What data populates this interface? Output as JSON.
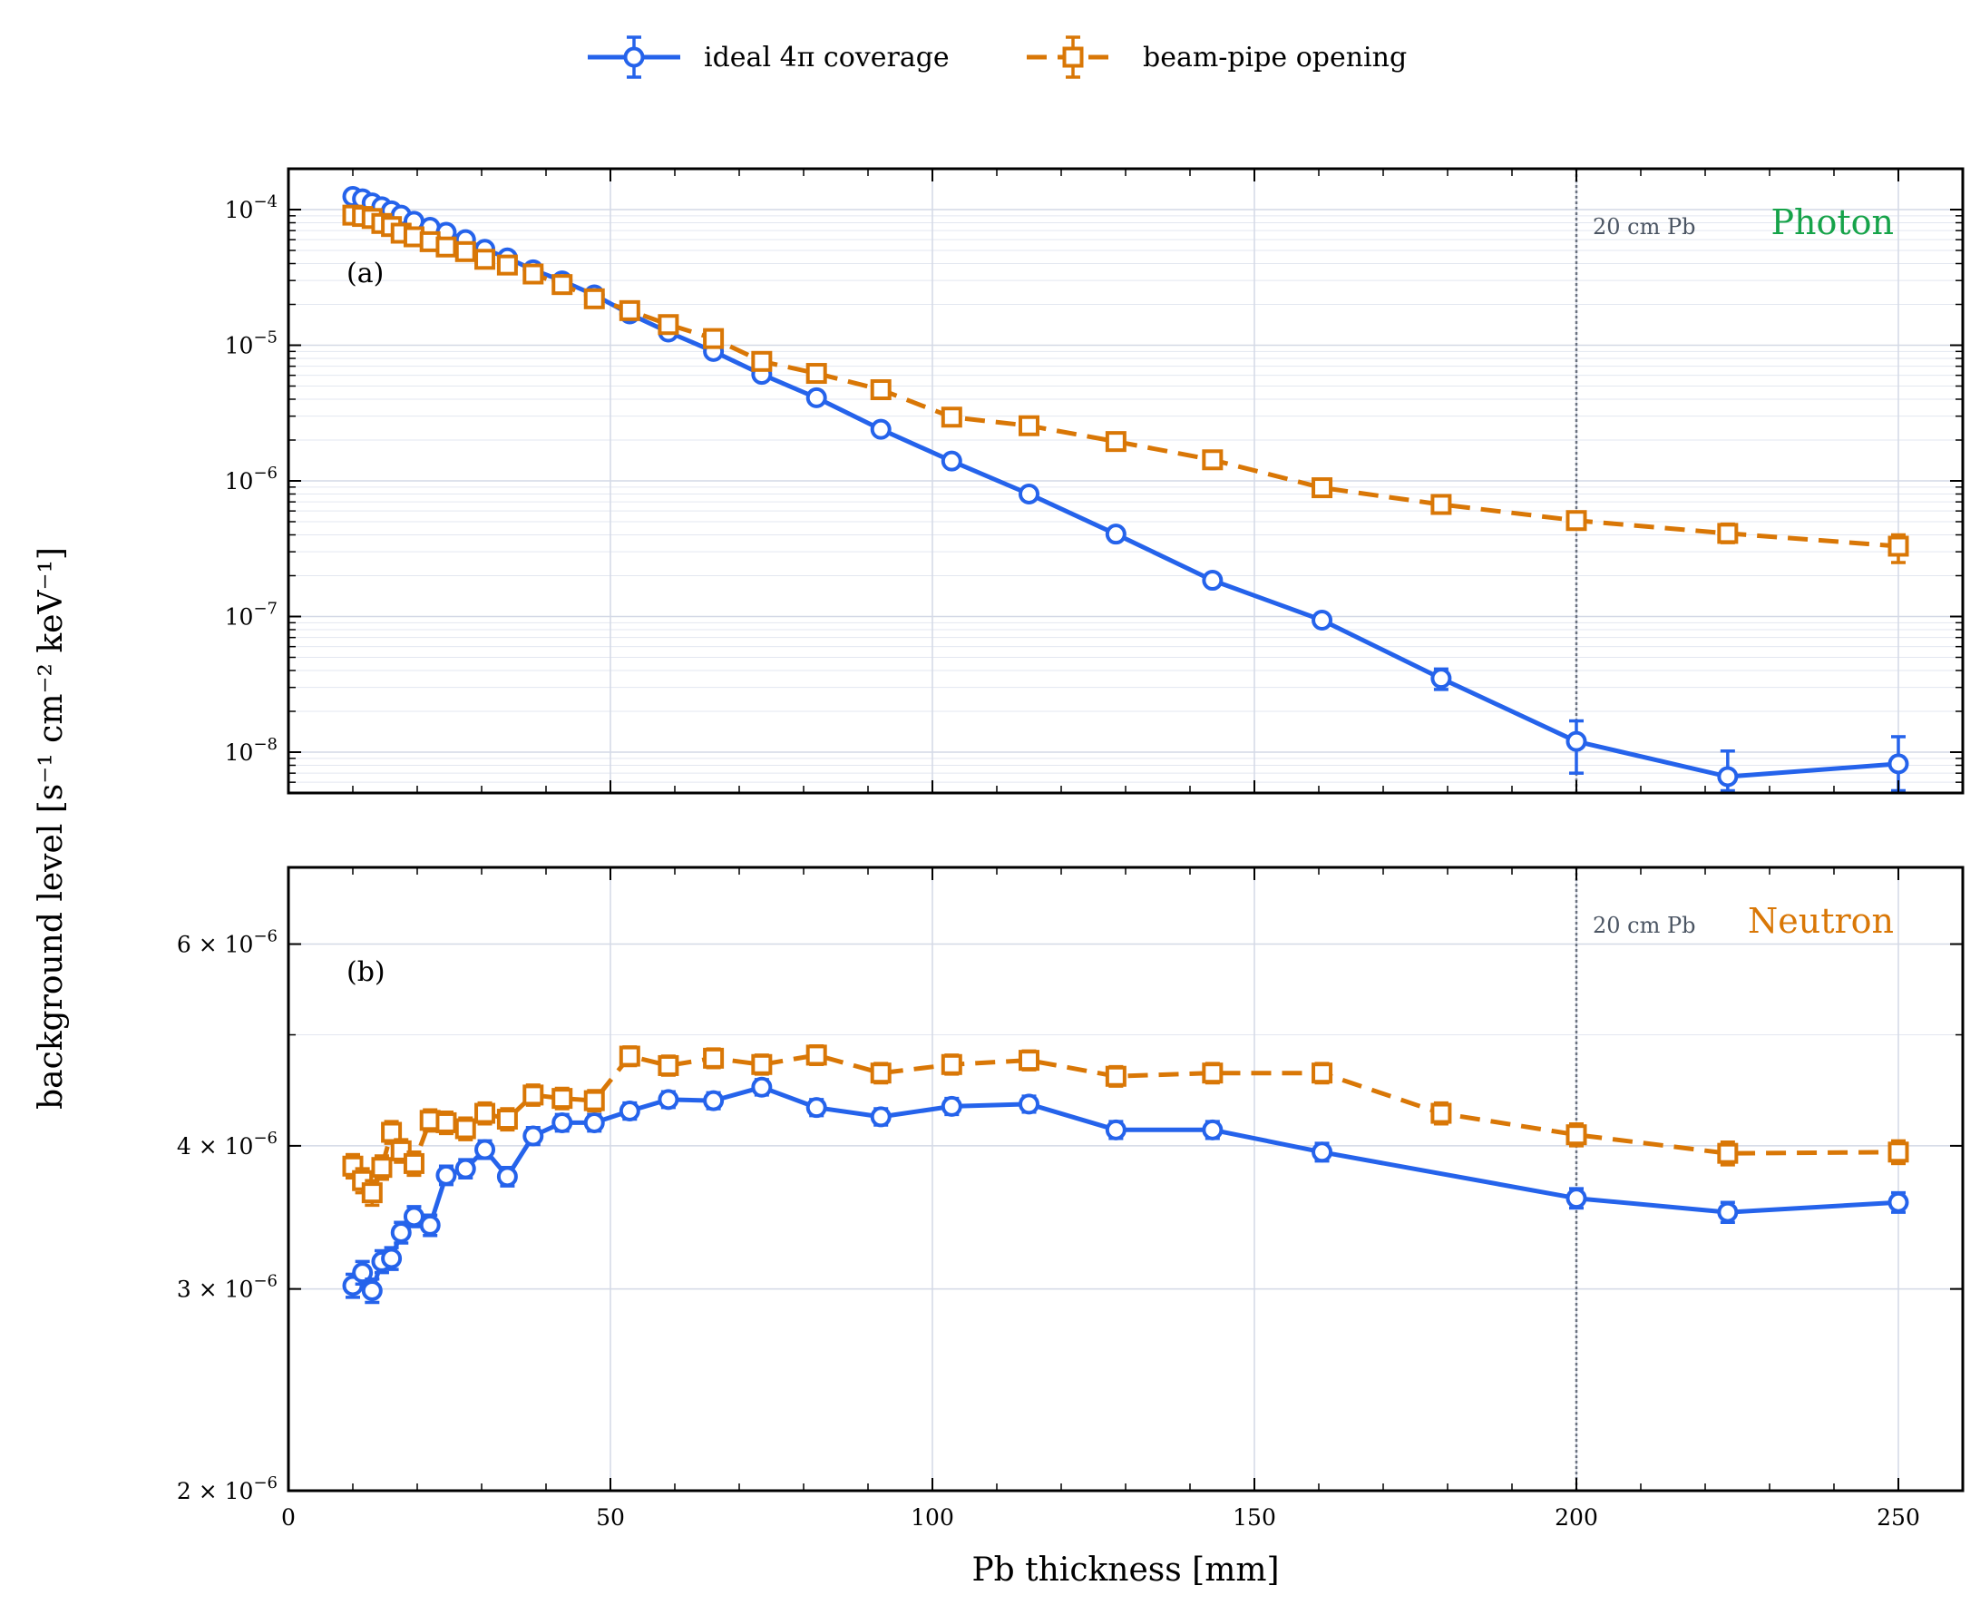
{
  "chart_data": {
    "type": "line",
    "legend": {
      "placement": "top-center"
    },
    "series_styles": [
      {
        "key": "ideal",
        "name": "ideal 4π coverage",
        "color": "#2563eb",
        "marker": "circle",
        "dash": "solid"
      },
      {
        "key": "beam",
        "name": "beam-pipe opening",
        "color": "#d97706",
        "marker": "square",
        "dash": "dashed"
      }
    ],
    "xlabel": "Pb thickness [mm]",
    "ylabel": "background level [s⁻¹ cm⁻² keV⁻¹]",
    "xlim": [
      0,
      260
    ],
    "xticks": [
      0,
      50,
      100,
      150,
      200,
      250
    ],
    "reference_line": {
      "x": 200,
      "label": "20 cm Pb",
      "color": "#6b7280"
    },
    "grid": true,
    "panels": [
      {
        "panel_label": "(a)",
        "species": "Photon",
        "species_color": "#16a34a",
        "yscale": "log",
        "ylim": [
          5e-09,
          0.0002
        ],
        "yticks": [
          {
            "value": 0.0001,
            "base": "10",
            "exp": "−4"
          },
          {
            "value": 1e-05,
            "base": "10",
            "exp": "−5"
          },
          {
            "value": 1e-06,
            "base": "10",
            "exp": "−6"
          },
          {
            "value": 1e-07,
            "base": "10",
            "exp": "−7"
          },
          {
            "value": 1e-08,
            "base": "10",
            "exp": "−8"
          }
        ],
        "series": [
          {
            "key": "ideal",
            "x": [
              10,
              11.5,
              13,
              14.5,
              16,
              17.5,
              19.5,
              22,
              24.5,
              27.5,
              30.5,
              34,
              38,
              42.5,
              47.5,
              53,
              59,
              66,
              73.5,
              82,
              92,
              103,
              115,
              128.5,
              143.5,
              160.5,
              179,
              200,
              223.5,
              250
            ],
            "y": [
              0.000125,
              0.00012,
              0.000112,
              0.000105,
              9.8e-05,
              9.1e-05,
              8.2e-05,
              7.4e-05,
              6.8e-05,
              6e-05,
              5.1e-05,
              4.4e-05,
              3.6e-05,
              2.98e-05,
              2.35e-05,
              1.7e-05,
              1.25e-05,
              9e-06,
              6.1e-06,
              4.1e-06,
              2.4e-06,
              1.4e-06,
              8e-07,
              4.05e-07,
              1.85e-07,
              9.4e-08,
              3.5e-08,
              1.2e-08,
              6.6e-09,
              8.2e-09
            ],
            "yerr_low": [
              null,
              null,
              null,
              null,
              null,
              null,
              null,
              null,
              null,
              null,
              null,
              null,
              null,
              null,
              null,
              null,
              null,
              null,
              null,
              null,
              null,
              null,
              null,
              null,
              null,
              null,
              2.9e-08,
              7e-09,
              5.2e-09,
              5.2e-09
            ],
            "yerr_high": [
              null,
              null,
              null,
              null,
              null,
              null,
              null,
              null,
              null,
              null,
              null,
              null,
              null,
              null,
              null,
              null,
              null,
              null,
              null,
              null,
              null,
              null,
              null,
              null,
              null,
              null,
              4.1e-08,
              1.7e-08,
              1.02e-08,
              1.3e-08
            ]
          },
          {
            "key": "beam",
            "x": [
              10,
              11.5,
              13,
              14.5,
              16,
              17.5,
              19.5,
              22,
              24.5,
              27.5,
              30.5,
              34,
              38,
              42.5,
              47.5,
              53,
              59,
              66,
              73.5,
              82,
              92,
              103,
              115,
              128.5,
              143.5,
              160.5,
              179,
              200,
              223.5,
              250
            ],
            "y": [
              9.1e-05,
              8.9e-05,
              8.6e-05,
              7.9e-05,
              7.5e-05,
              6.7e-05,
              6.3e-05,
              5.8e-05,
              5.3e-05,
              4.9e-05,
              4.3e-05,
              3.9e-05,
              3.35e-05,
              2.8e-05,
              2.2e-05,
              1.8e-05,
              1.42e-05,
              1.12e-05,
              7.6e-06,
              6.2e-06,
              4.7e-06,
              2.95e-06,
              2.55e-06,
              1.95e-06,
              1.43e-06,
              8.9e-07,
              6.7e-07,
              5.1e-07,
              4.1e-07,
              3.3e-07
            ],
            "yerr_low": [
              null,
              null,
              null,
              null,
              null,
              null,
              null,
              null,
              null,
              null,
              null,
              null,
              null,
              null,
              null,
              null,
              null,
              null,
              null,
              null,
              null,
              null,
              null,
              null,
              null,
              null,
              5.9e-07,
              4.4e-07,
              3.5e-07,
              2.5e-07
            ],
            "yerr_high": [
              null,
              null,
              null,
              null,
              null,
              null,
              null,
              null,
              null,
              null,
              null,
              null,
              null,
              null,
              null,
              null,
              null,
              null,
              null,
              null,
              null,
              null,
              null,
              null,
              null,
              null,
              7.5e-07,
              5.9e-07,
              4.8e-07,
              4e-07
            ]
          }
        ]
      },
      {
        "panel_label": "(b)",
        "species": "Neutron",
        "species_color": "#d97706",
        "yscale": "log",
        "ylim": [
          2e-06,
          7e-06
        ],
        "yticks": [
          {
            "value": 6e-06,
            "base": "6 × 10",
            "exp": "−6"
          },
          {
            "value": 4e-06,
            "base": "4 × 10",
            "exp": "−6"
          },
          {
            "value": 3e-06,
            "base": "3 × 10",
            "exp": "−6"
          },
          {
            "value": 2e-06,
            "base": "2 × 10",
            "exp": "−6"
          }
        ],
        "series": [
          {
            "key": "ideal",
            "x": [
              10,
              11.5,
              13,
              14.5,
              16,
              17.5,
              19.5,
              22,
              24.5,
              27.5,
              30.5,
              34,
              38,
              42.5,
              47.5,
              53,
              59,
              66,
              73.5,
              82,
              92,
              103,
              115,
              128.5,
              143.5,
              160.5,
              179,
              200,
              223.5,
              250
            ],
            "y": [
              3.02e-06,
              3.1e-06,
              2.99e-06,
              3.17e-06,
              3.19e-06,
              3.36e-06,
              3.47e-06,
              3.41e-06,
              3.77e-06,
              3.82e-06,
              3.97e-06,
              3.76e-06,
              4.08e-06,
              4.19e-06,
              4.19e-06,
              4.29e-06,
              4.39e-06,
              4.38e-06,
              4.5e-06,
              4.32e-06,
              4.24e-06,
              4.33e-06,
              4.35e-06,
              4.13e-06,
              4.13e-06,
              3.95e-06,
              null,
              3.6e-06,
              3.5e-06,
              3.57e-06
            ],
            "yerr": 7e-08
          },
          {
            "key": "beam",
            "x": [
              10,
              11.5,
              13,
              14.5,
              16,
              17.5,
              19.5,
              22,
              24.5,
              27.5,
              30.5,
              34,
              38,
              42.5,
              47.5,
              53,
              59,
              66,
              73.5,
              82,
              92,
              103,
              115,
              128.5,
              143.5,
              160.5,
              179,
              200,
              223.5,
              250
            ],
            "y": [
              3.84e-06,
              3.73e-06,
              3.64e-06,
              3.83e-06,
              4.11e-06,
              3.96e-06,
              3.86e-06,
              4.21e-06,
              4.19e-06,
              4.14e-06,
              4.27e-06,
              4.22e-06,
              4.43e-06,
              4.4e-06,
              4.38e-06,
              4.79e-06,
              4.7e-06,
              4.77e-06,
              4.71e-06,
              4.8e-06,
              4.63e-06,
              4.71e-06,
              4.75e-06,
              4.6e-06,
              4.63e-06,
              4.63e-06,
              4.27e-06,
              4.09e-06,
              3.94e-06,
              3.95e-06
            ],
            "yerr": 9e-08
          }
        ]
      }
    ]
  }
}
